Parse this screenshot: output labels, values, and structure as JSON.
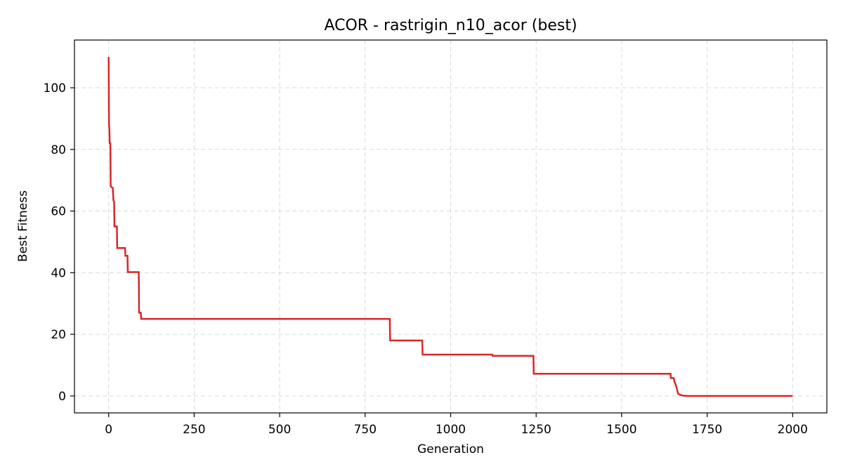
{
  "chart_data": {
    "type": "line",
    "title": "ACOR - rastrigin_n10_acor (best)",
    "xlabel": "Generation",
    "ylabel": "Best Fitness",
    "xlim": [
      -100,
      2100
    ],
    "ylim": [
      -5.5,
      115.5
    ],
    "xticks": [
      0,
      250,
      500,
      750,
      1000,
      1250,
      1500,
      1750,
      2000
    ],
    "yticks": [
      0,
      20,
      40,
      60,
      80,
      100
    ],
    "grid": true,
    "grid_style": "dashed",
    "legend": "none",
    "line_color": "#d62728",
    "series": [
      {
        "step": true,
        "points": [
          [
            0,
            110.0
          ],
          [
            1,
            88.0
          ],
          [
            2,
            87.0
          ],
          [
            3,
            82.0
          ],
          [
            5,
            82.0
          ],
          [
            6,
            68.0
          ],
          [
            12,
            67.5
          ],
          [
            14,
            63.5
          ],
          [
            16,
            63.0
          ],
          [
            17,
            55.0
          ],
          [
            24,
            55.0
          ],
          [
            25,
            48.0
          ],
          [
            48,
            48.0
          ],
          [
            49,
            45.5
          ],
          [
            55,
            45.5
          ],
          [
            56,
            40.2
          ],
          [
            88,
            40.2
          ],
          [
            89,
            27.0
          ],
          [
            94,
            27.0
          ],
          [
            95,
            25.0
          ],
          [
            822,
            25.0
          ],
          [
            823,
            18.0
          ],
          [
            917,
            18.0
          ],
          [
            918,
            13.4
          ],
          [
            1122,
            13.4
          ],
          [
            1123,
            13.0
          ],
          [
            1242,
            13.0
          ],
          [
            1243,
            7.2
          ],
          [
            1643,
            7.2
          ],
          [
            1644,
            5.8
          ],
          [
            1652,
            5.8
          ],
          [
            1655,
            4.5
          ],
          [
            1660,
            3.0
          ],
          [
            1665,
            0.7
          ],
          [
            1675,
            0.2
          ],
          [
            1690,
            0.0
          ],
          [
            2000,
            0.0
          ]
        ]
      }
    ]
  }
}
